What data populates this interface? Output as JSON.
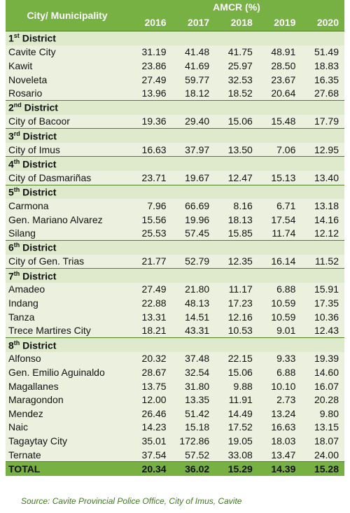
{
  "table": {
    "header": {
      "city": "City/ Municipality",
      "amcr": "AMCR (%)",
      "years": [
        "2016",
        "2017",
        "2018",
        "2019",
        "2020"
      ]
    },
    "districts": [
      {
        "name": "1st District",
        "rows": [
          {
            "city": "Cavite City",
            "values": [
              "31.19",
              "41.48",
              "41.75",
              "48.91",
              "51.49"
            ]
          },
          {
            "city": "Kawit",
            "values": [
              "23.86",
              "41.69",
              "25.97",
              "28.50",
              "18.83"
            ]
          },
          {
            "city": "Noveleta",
            "values": [
              "27.49",
              "59.77",
              "32.53",
              "23.67",
              "16.35"
            ]
          },
          {
            "city": "Rosario",
            "values": [
              "13.96",
              "18.12",
              "18.52",
              "20.64",
              "27.68"
            ]
          }
        ]
      },
      {
        "name": "2nd District",
        "rows": [
          {
            "city": "City of Bacoor",
            "values": [
              "19.36",
              "29.40",
              "15.06",
              "15.48",
              "17.79"
            ]
          }
        ]
      },
      {
        "name": "3rd District",
        "rows": [
          {
            "city": "City of Imus",
            "values": [
              "16.63",
              "37.97",
              "13.50",
              "7.06",
              "12.95"
            ]
          }
        ]
      },
      {
        "name": "4th District",
        "rows": [
          {
            "city": "City of Dasmariñas",
            "values": [
              "23.71",
              "19.67",
              "12.47",
              "15.13",
              "13.40"
            ]
          }
        ]
      },
      {
        "name": "5th District",
        "rows": [
          {
            "city": "Carmona",
            "values": [
              "7.96",
              "66.69",
              "8.16",
              "6.71",
              "13.18"
            ]
          },
          {
            "city": "Gen. Mariano Alvarez",
            "values": [
              "15.56",
              "19.96",
              "18.13",
              "17.54",
              "14.16"
            ]
          },
          {
            "city": "Silang",
            "values": [
              "25.53",
              "57.45",
              "15.85",
              "11.74",
              "12.12"
            ]
          }
        ]
      },
      {
        "name": "6th District",
        "rows": [
          {
            "city": "City of Gen. Trias",
            "values": [
              "21.77",
              "52.79",
              "12.35",
              "16.14",
              "11.52"
            ]
          }
        ]
      },
      {
        "name": "7th District",
        "rows": [
          {
            "city": "Amadeo",
            "values": [
              "27.49",
              "21.80",
              "11.17",
              "6.88",
              "15.91"
            ]
          },
          {
            "city": "Indang",
            "values": [
              "22.88",
              "48.13",
              "17.23",
              "10.59",
              "17.35"
            ]
          },
          {
            "city": "Tanza",
            "values": [
              "13.31",
              "14.51",
              "12.16",
              "10.59",
              "10.36"
            ]
          },
          {
            "city": "Trece Martires City",
            "values": [
              "18.21",
              "43.31",
              "10.53",
              "9.01",
              "12.43"
            ]
          }
        ]
      },
      {
        "name": "8th District",
        "rows": [
          {
            "city": "Alfonso",
            "values": [
              "20.32",
              "37.48",
              "22.15",
              "9.33",
              "19.39"
            ]
          },
          {
            "city": "Gen. Emilio Aguinaldo",
            "values": [
              "28.67",
              "32.54",
              "15.06",
              "6.88",
              "14.60"
            ]
          },
          {
            "city": "Magallanes",
            "values": [
              "13.75",
              "31.80",
              "9.88",
              "10.10",
              "16.07"
            ]
          },
          {
            "city": "Maragondon",
            "values": [
              "12.00",
              "13.35",
              "11.91",
              "2.73",
              "20.28"
            ]
          },
          {
            "city": "Mendez",
            "values": [
              "26.46",
              "51.42",
              "14.49",
              "13.24",
              "9.80"
            ]
          },
          {
            "city": "Naic",
            "values": [
              "14.23",
              "15.18",
              "17.52",
              "16.63",
              "13.15"
            ]
          },
          {
            "city": "Tagaytay City",
            "values": [
              "35.01",
              "172.86",
              "19.05",
              "18.03",
              "18.07"
            ]
          },
          {
            "city": "Ternate",
            "values": [
              "37.54",
              "57.52",
              "33.08",
              "13.47",
              "24.00"
            ]
          }
        ]
      }
    ],
    "total": {
      "label": "TOTAL",
      "values": [
        "20.34",
        "36.02",
        "15.29",
        "14.39",
        "15.28"
      ]
    }
  },
  "source": "Source: Cavite Provincial Police Office, City of Imus, Cavite"
}
